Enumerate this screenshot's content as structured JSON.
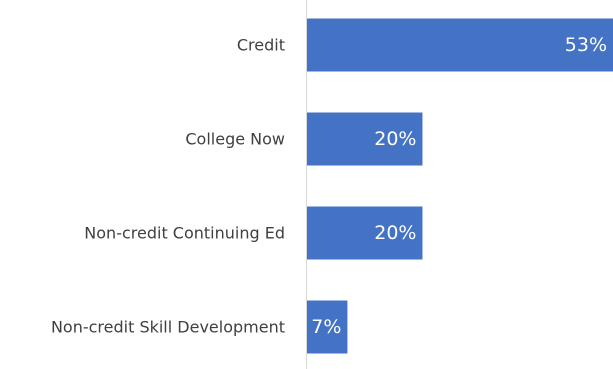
{
  "chart_data": {
    "type": "bar",
    "orientation": "horizontal",
    "categories": [
      "Credit",
      "College Now",
      "Non-credit Continuing Ed",
      "Non-credit Skill Development"
    ],
    "values": [
      53,
      20,
      20,
      7
    ],
    "value_labels": [
      "53%",
      "20%",
      "20%",
      "7%"
    ],
    "unit": "%",
    "title": "",
    "xlabel": "",
    "ylabel": "",
    "xlim": [
      0,
      53
    ],
    "grid": false,
    "legend": "none",
    "bar_color": "#4472c4",
    "axis_color": "#d9d9d9"
  }
}
